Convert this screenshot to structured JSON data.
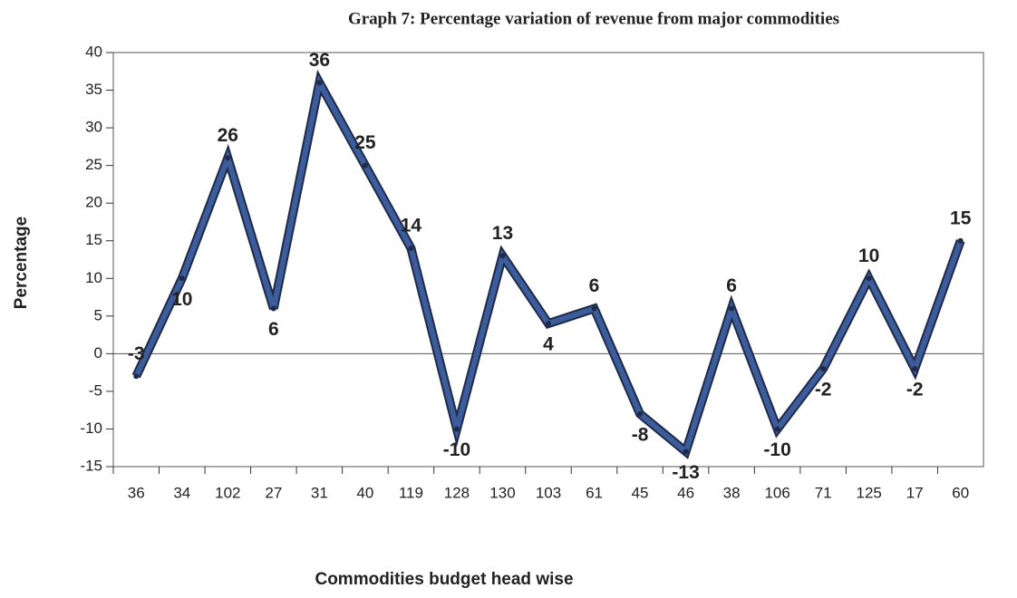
{
  "chart_data": {
    "type": "line",
    "title": "Graph 7: Percentage variation of revenue from major commodities",
    "x_label": "Commodities budget head wise",
    "y_label": "Percentage",
    "categories": [
      "36",
      "34",
      "102",
      "27",
      "31",
      "40",
      "119",
      "128",
      "130",
      "103",
      "61",
      "45",
      "46",
      "38",
      "106",
      "71",
      "125",
      "17",
      "60"
    ],
    "values": [
      -3,
      10,
      26,
      6,
      36,
      25,
      14,
      -10,
      13,
      4,
      6,
      -8,
      -13,
      6,
      -10,
      -2,
      10,
      -2,
      15
    ],
    "color": "#3d5c9c",
    "ylim": [
      -15,
      40
    ],
    "yticks": [
      -15,
      -10,
      -5,
      0,
      5,
      10,
      15,
      20,
      25,
      30,
      35,
      40
    ]
  }
}
